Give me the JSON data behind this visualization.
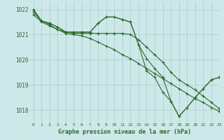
{
  "title": "Graphe pression niveau de la mer (hPa)",
  "bg_color": "#cce8e8",
  "grid_color": "#aacccc",
  "line_color": "#2d6a2d",
  "xlim": [
    -0.5,
    23
  ],
  "ylim": [
    1017.5,
    1022.3
  ],
  "yticks": [
    1018,
    1019,
    1020,
    1021,
    1022
  ],
  "xticks": [
    0,
    1,
    2,
    3,
    4,
    5,
    6,
    7,
    8,
    9,
    10,
    11,
    12,
    13,
    14,
    15,
    16,
    17,
    18,
    19,
    20,
    21,
    22,
    23
  ],
  "series": [
    [
      1022.0,
      1021.55,
      1021.45,
      1021.3,
      1021.1,
      1021.1,
      1021.1,
      1021.1,
      1021.45,
      1021.7,
      1021.7,
      1021.6,
      1021.5,
      1020.6,
      1019.55,
      1019.3,
      1018.7,
      1018.35,
      1017.75,
      1018.1,
      1018.5,
      1018.85,
      1019.2,
      1019.3
    ],
    [
      1022.0,
      1021.55,
      1021.45,
      1021.3,
      1021.1,
      1021.1,
      1021.1,
      1021.1,
      1021.45,
      1021.7,
      1021.7,
      1021.6,
      1021.5,
      1020.6,
      1020.05,
      1019.65,
      1019.3,
      1018.35,
      1017.75,
      1018.1,
      1018.5,
      1018.85,
      1019.2,
      1019.3
    ],
    [
      1021.9,
      1021.55,
      1021.4,
      1021.2,
      1021.1,
      1021.05,
      1021.05,
      1021.05,
      1021.05,
      1021.05,
      1021.05,
      1021.05,
      1021.0,
      1020.8,
      1020.5,
      1020.2,
      1019.9,
      1019.5,
      1019.2,
      1019.0,
      1018.8,
      1018.55,
      1018.3,
      1018.05
    ],
    [
      1021.8,
      1021.5,
      1021.35,
      1021.2,
      1021.05,
      1021.0,
      1020.95,
      1020.85,
      1020.7,
      1020.55,
      1020.4,
      1020.2,
      1020.05,
      1019.85,
      1019.65,
      1019.45,
      1019.25,
      1019.05,
      1018.85,
      1018.65,
      1018.45,
      1018.3,
      1018.1,
      1017.95
    ]
  ]
}
